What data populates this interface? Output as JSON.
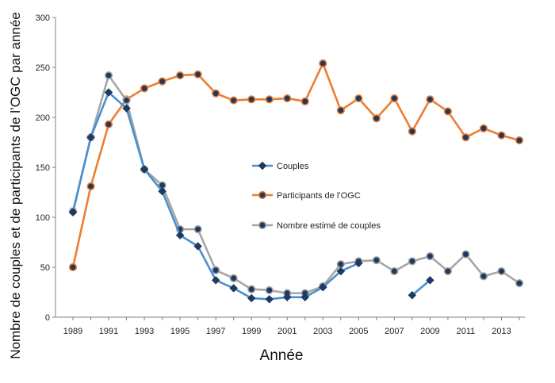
{
  "chart_data": {
    "type": "line",
    "xlabel": "Année",
    "ylabel": "Nombre de couples et de participants de l’OGC par année",
    "xlim": [
      1989,
      2014
    ],
    "ylim": [
      0,
      300
    ],
    "x_ticks": [
      "1989",
      "1991",
      "1993",
      "1995",
      "1997",
      "1999",
      "2001",
      "2003",
      "2005",
      "2007",
      "2009",
      "2011",
      "2013"
    ],
    "y_ticks": [
      "0",
      "50",
      "100",
      "150",
      "200",
      "250",
      "300"
    ],
    "grid": false,
    "legend_position": "center",
    "colors": {
      "Couples": "#4a8fd1",
      "Participants de l’OGC": "#ed7d31",
      "Nombre estimé de couples": "#a5a5a5",
      "marker": "#1f3a60"
    },
    "series": [
      {
        "name": "Couples",
        "marker": "diamond",
        "segments": [
          {
            "x": [
              1989,
              1990,
              1991,
              1992,
              1993,
              1994,
              1995,
              1996,
              1997,
              1998,
              1999,
              2000,
              2001,
              2002,
              2003,
              2004,
              2005
            ],
            "y": [
              105,
              180,
              225,
              209,
              148,
              126,
              82,
              71,
              37,
              29,
              19,
              18,
              20,
              20,
              30,
              46,
              54
            ]
          },
          {
            "x": [
              2008,
              2009
            ],
            "y": [
              22,
              37
            ]
          }
        ]
      },
      {
        "name": "Participants de l’OGC",
        "marker": "circle",
        "segments": [
          {
            "x": [
              1989,
              1990,
              1991,
              1992,
              1993,
              1994,
              1995,
              1996,
              1997,
              1998,
              1999,
              2000,
              2001,
              2002,
              2003,
              2004,
              2005,
              2006,
              2007,
              2008,
              2009,
              2010,
              2011,
              2012,
              2013,
              2014
            ],
            "y": [
              50,
              131,
              193,
              218,
              229,
              236,
              242,
              243,
              224,
              217,
              218,
              218,
              219,
              216,
              254,
              207,
              219,
              199,
              219,
              186,
              218,
              206,
              180,
              189,
              182,
              177
            ]
          }
        ]
      },
      {
        "name": "Nombre estimé de couples",
        "marker": "circle",
        "segments": [
          {
            "x": [
              1989,
              1990,
              1991,
              1992,
              1993,
              1994,
              1995,
              1996,
              1997,
              1998,
              1999,
              2000,
              2001,
              2002,
              2003,
              2004,
              2005,
              2006,
              2007,
              2008,
              2009,
              2010,
              2011,
              2012,
              2013,
              2014
            ],
            "y": [
              106,
              180,
              242,
              217,
              148,
              132,
              88,
              88,
              47,
              39,
              28,
              27,
              24,
              24,
              31,
              53,
              56,
              57,
              46,
              56,
              61,
              46,
              63,
              41,
              46,
              34
            ]
          }
        ]
      }
    ]
  }
}
